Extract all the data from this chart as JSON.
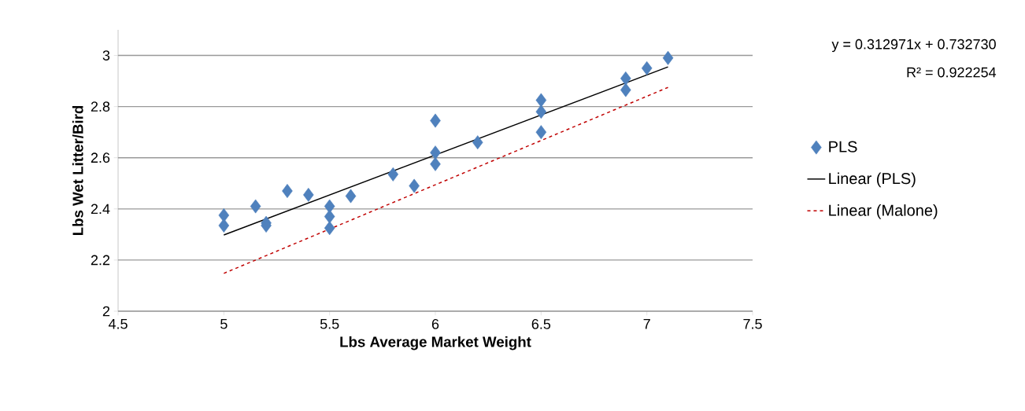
{
  "chart_data": {
    "type": "scatter",
    "xlabel": "Lbs Average Market Weight",
    "ylabel": "Lbs Wet Litter/Bird",
    "xlim": [
      4.5,
      7.5
    ],
    "xticks": [
      4.5,
      5,
      5.5,
      6,
      6.5,
      7,
      7.5
    ],
    "ylim": [
      2,
      3.1
    ],
    "yticks": [
      2,
      2.2,
      2.4,
      2.6,
      2.8,
      3
    ],
    "grid": "y",
    "legend": "right",
    "marker": "diamond",
    "annotations": [
      "y = 0.312971x + 0.732730",
      "R² = 0.922254"
    ],
    "series": [
      {
        "name": "PLS",
        "type": "scatter",
        "color": "#4f81bd",
        "x": [
          5,
          5,
          5.15,
          5.2,
          5.2,
          5.3,
          5.4,
          5.5,
          5.5,
          5.5,
          5.6,
          5.8,
          5.9,
          6,
          6,
          6,
          6.2,
          6.5,
          6.5,
          6.5,
          6.9,
          6.9,
          7,
          7.1
        ],
        "values": [
          2.375,
          2.335,
          2.41,
          2.345,
          2.335,
          2.47,
          2.455,
          2.41,
          2.37,
          2.325,
          2.45,
          2.535,
          2.49,
          2.745,
          2.62,
          2.575,
          2.66,
          2.825,
          2.78,
          2.7,
          2.91,
          2.865,
          2.95,
          2.99
        ]
      },
      {
        "name": "Linear (PLS)",
        "type": "line",
        "color": "#000000",
        "line_style": "solid",
        "marker": "none",
        "x": [
          5,
          7.1
        ],
        "values": [
          2.298,
          2.955
        ]
      },
      {
        "name": "Linear (Malone)",
        "type": "line",
        "color": "#c00000",
        "line_style": "dashed",
        "marker": "none",
        "x": [
          5,
          7.1
        ],
        "values": [
          2.148,
          2.875
        ]
      }
    ]
  }
}
